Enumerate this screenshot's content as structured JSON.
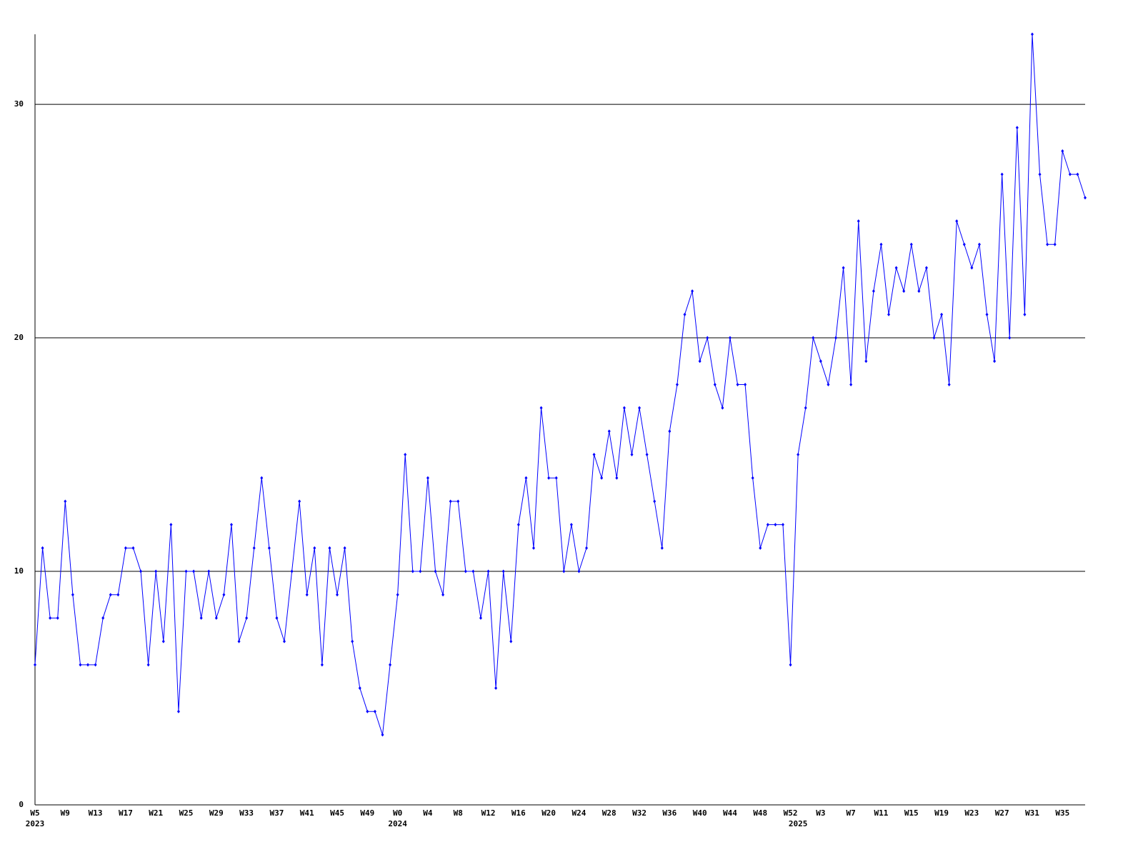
{
  "chart_data": {
    "type": "line",
    "categories": [
      "W5",
      null,
      null,
      null,
      "W9",
      null,
      null,
      null,
      "W13",
      null,
      null,
      null,
      "W17",
      null,
      null,
      null,
      "W21",
      null,
      null,
      null,
      "W25",
      null,
      null,
      null,
      "W29",
      null,
      null,
      null,
      "W33",
      null,
      null,
      null,
      "W37",
      null,
      null,
      null,
      "W41",
      null,
      null,
      null,
      "W45",
      null,
      null,
      null,
      "W49",
      null,
      null,
      null,
      "W0",
      null,
      null,
      null,
      "W4",
      null,
      null,
      null,
      "W8",
      null,
      null,
      null,
      "W12",
      null,
      null,
      null,
      "W16",
      null,
      null,
      null,
      "W20",
      null,
      null,
      null,
      "W24",
      null,
      null,
      null,
      "W28",
      null,
      null,
      null,
      "W32",
      null,
      null,
      null,
      "W36",
      null,
      null,
      null,
      "W40",
      null,
      null,
      null,
      "W44",
      null,
      null,
      null,
      "W48",
      null,
      null,
      null,
      "W52",
      null,
      null,
      null,
      "W3",
      null,
      null,
      null,
      "W7",
      null,
      null,
      null,
      "W11",
      null,
      null,
      null,
      "W15",
      null,
      null,
      null,
      "W19",
      null,
      null,
      null,
      "W23",
      null,
      null,
      null,
      "W27",
      null,
      null,
      null,
      "W31",
      null,
      null,
      null,
      "W35",
      null,
      null,
      null
    ],
    "years": [
      {
        "label": "2023",
        "at": 0
      },
      {
        "label": "2024",
        "at": 48
      },
      {
        "label": "2025",
        "at": 101
      }
    ],
    "series": [
      {
        "color": "#0000ff",
        "values": [
          6,
          11,
          8,
          8,
          13,
          9,
          6,
          6,
          6,
          8,
          9,
          9,
          11,
          11,
          10,
          6,
          10,
          7,
          12,
          4,
          10,
          10,
          8,
          10,
          8,
          9,
          12,
          7,
          8,
          11,
          14,
          11,
          8,
          7,
          10,
          13,
          9,
          11,
          6,
          11,
          9,
          11,
          7,
          5,
          4,
          4,
          3,
          6,
          9,
          15,
          10,
          10,
          14,
          10,
          9,
          13,
          13,
          10,
          10,
          8,
          10,
          5,
          10,
          7,
          12,
          14,
          11,
          17,
          14,
          14,
          10,
          12,
          10,
          11,
          15,
          14,
          16,
          14,
          17,
          15,
          17,
          15,
          13,
          11,
          16,
          18,
          21,
          22,
          19,
          20,
          18,
          17,
          20,
          18,
          18,
          14,
          11,
          12,
          12,
          12,
          6,
          15,
          17,
          20,
          19,
          18,
          20,
          23,
          18,
          25,
          19,
          22,
          24,
          21,
          23,
          22,
          24,
          22,
          23,
          20,
          21,
          18,
          25,
          24,
          23,
          24,
          21,
          19,
          27,
          20,
          29,
          21,
          33,
          27,
          24,
          24,
          28,
          27,
          27,
          26
        ]
      }
    ],
    "ylim": [
      0,
      33
    ],
    "yticks": [
      0,
      10,
      20,
      30
    ],
    "grid": true
  }
}
